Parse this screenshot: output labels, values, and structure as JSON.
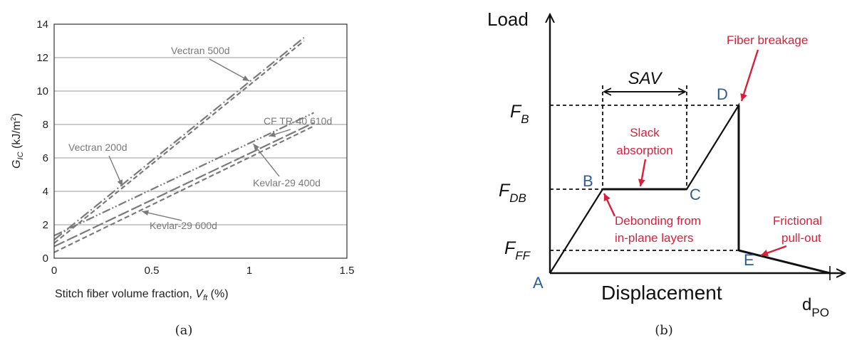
{
  "chart_data": [
    {
      "type": "line",
      "caption": "(a)",
      "xlabel": "Stitch fiber volume fraction,",
      "xlabel_var": "V",
      "xlabel_sub": "ft",
      "xlabel_unit": " (%)",
      "ylabel_var": "G",
      "ylabel_sub": "IC",
      "ylabel_unit": " (kJ/m",
      "ylabel_sup": "2",
      "ylabel_close": ")",
      "xlim": [
        0,
        1.5
      ],
      "ylim": [
        0,
        14
      ],
      "xticks": [
        "0",
        "0.5",
        "1",
        "1.5"
      ],
      "yticks": [
        "0",
        "2",
        "4",
        "6",
        "8",
        "10",
        "12",
        "14"
      ],
      "grid": "horizontal",
      "color": "#7a7a7a",
      "series": [
        {
          "name": "Vectran 500d",
          "dash": "dash-dot",
          "x": [
            0,
            1.28
          ],
          "y": [
            1.1,
            13.2
          ]
        },
        {
          "name": "Vectran 200d",
          "dash": "dashed",
          "x": [
            0,
            1.28
          ],
          "y": [
            0.9,
            13.0
          ]
        },
        {
          "name": "CF TR-40 610d",
          "dash": "dash-dot-dot",
          "x": [
            0,
            1.33
          ],
          "y": [
            1.35,
            8.7
          ]
        },
        {
          "name": "Kevlar-29 400d",
          "dash": "long-dash",
          "x": [
            0,
            1.33
          ],
          "y": [
            0.7,
            8.1
          ]
        },
        {
          "name": "Kevlar-29 600d",
          "dash": "dashed",
          "x": [
            0,
            1.33
          ],
          "y": [
            0.35,
            7.9
          ]
        }
      ],
      "annotations": [
        {
          "text": "Vectran 500d",
          "points_to": [
            1.0,
            10.6
          ]
        },
        {
          "text": "CF TR-40 610d",
          "points_to": [
            1.1,
            7.3
          ]
        },
        {
          "text": "Vectran 200d",
          "points_to": [
            0.35,
            4.3
          ]
        },
        {
          "text": "Kevlar-29 400d",
          "points_to": [
            1.02,
            6.85
          ]
        },
        {
          "text": "Kevlar-29 600d",
          "points_to": [
            0.45,
            2.8
          ]
        }
      ]
    },
    {
      "type": "diagram",
      "caption": "(b)",
      "y_axis_label": "Load",
      "x_axis_label": "Displacement",
      "x_end_var": "d",
      "x_end_sub": "PO",
      "load_levels": [
        {
          "var": "F",
          "sub": "B"
        },
        {
          "var": "F",
          "sub": "DB"
        },
        {
          "var": "F",
          "sub": "FF"
        }
      ],
      "points": [
        "A",
        "B",
        "C",
        "D",
        "E"
      ],
      "span_label": "SAV",
      "annotations": {
        "fiber_breakage": "Fiber breakage",
        "slack_1": "Slack",
        "slack_2": "absorption",
        "debond_1": "Debonding from",
        "debond_2": "in-plane layers",
        "frict_1": "Frictional",
        "frict_2": "pull-out"
      },
      "colors": {
        "point_label": "#2c5c9c",
        "annotation": "#d9203a",
        "line": "#111111"
      }
    }
  ]
}
